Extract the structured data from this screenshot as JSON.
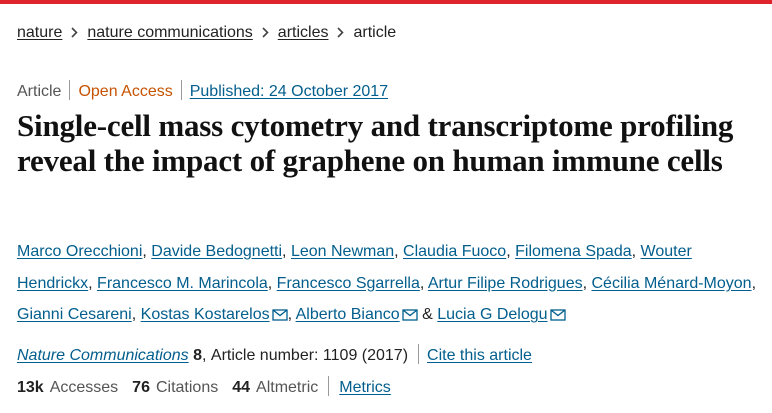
{
  "breadcrumbs": [
    "nature",
    "nature communications",
    "articles",
    "article"
  ],
  "meta": {
    "type": "Article",
    "access": "Open Access",
    "published": "Published: 24 October 2017"
  },
  "title": "Single-cell mass cytometry and transcriptome profiling reveal the impact of graphene on human immune cells",
  "authors": [
    "Marco Orecchioni",
    "Davide Bedognetti",
    "Leon Newman",
    "Claudia Fuoco",
    "Filomena Spada",
    "Wouter Hendrickx",
    "Francesco M. Marincola",
    "Francesco Sgarrella",
    "Artur Filipe Rodrigues",
    "Cécilia Ménard-Moyon",
    "Gianni Cesareni",
    "Kostas Kostarelos",
    "Alberto Bianco",
    "Lucia G Delogu"
  ],
  "author_separator": ",",
  "author_conjunction": "&",
  "citation": {
    "journal": "Nature Communications",
    "volume": "8",
    "separator": ",",
    "article_number": "Article number: 1109 (2017)",
    "cite_link": "Cite this article"
  },
  "metrics": {
    "accesses_value": "13k",
    "accesses_label": "Accesses",
    "citations_value": "76",
    "citations_label": "Citations",
    "altmetric_value": "44",
    "altmetric_label": "Altmetric",
    "link": "Metrics"
  }
}
